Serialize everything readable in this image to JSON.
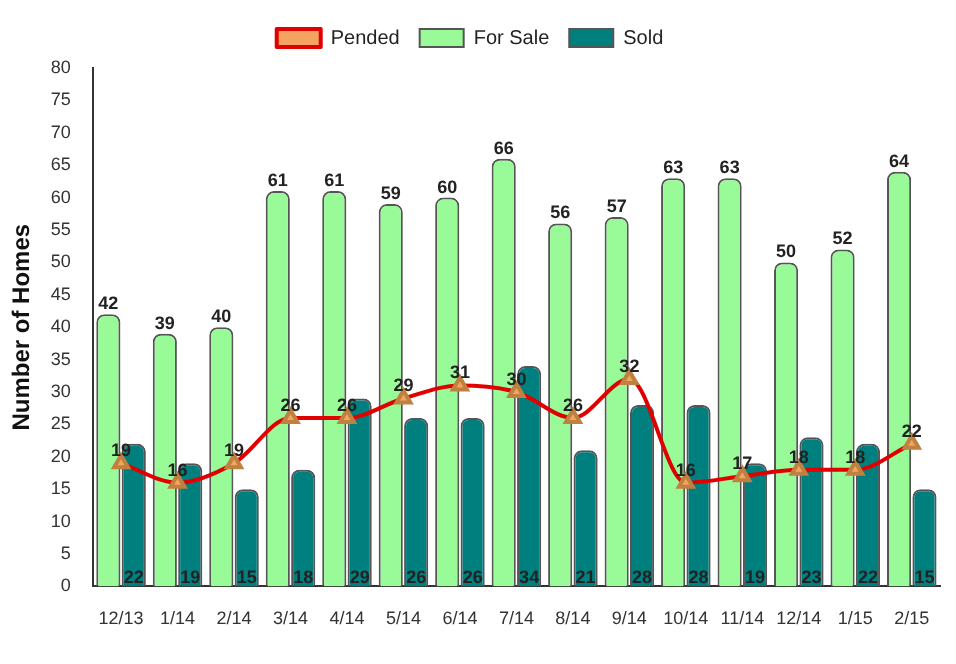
{
  "chart_data": {
    "type": "bar",
    "ylabel": "Number of Homes",
    "categories": [
      "12/13",
      "1/14",
      "2/14",
      "3/14",
      "4/14",
      "5/14",
      "6/14",
      "7/14",
      "8/14",
      "9/14",
      "10/14",
      "11/14",
      "12/14",
      "1/15",
      "2/15"
    ],
    "series": [
      {
        "name": "For Sale",
        "color": "#98fb98",
        "values": [
          42,
          39,
          40,
          61,
          61,
          59,
          60,
          66,
          56,
          57,
          63,
          63,
          50,
          52,
          64
        ]
      },
      {
        "name": "Sold",
        "color": "#007f7f",
        "values": [
          22,
          19,
          15,
          18,
          29,
          26,
          26,
          34,
          21,
          28,
          28,
          19,
          23,
          22,
          15
        ]
      },
      {
        "name": "Pended",
        "type": "line",
        "color": "#e00000",
        "values": [
          19,
          16,
          19,
          26,
          26,
          29,
          31,
          30,
          26,
          32,
          16,
          17,
          18,
          18,
          22
        ]
      }
    ],
    "ylim": [
      0,
      80
    ],
    "yticks": [
      0,
      5,
      10,
      15,
      20,
      25,
      30,
      35,
      40,
      45,
      50,
      55,
      60,
      65,
      70,
      75,
      80
    ],
    "grid": false,
    "legend": "top",
    "marker": "triangle",
    "data_labels": true
  }
}
